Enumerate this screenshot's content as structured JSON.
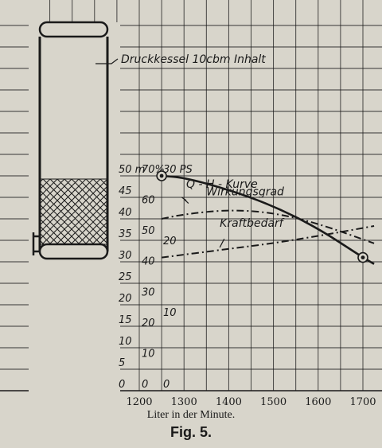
{
  "chart_data": {
    "type": "line",
    "x": {
      "label": "Liter in der Minute.",
      "ticks": [
        1200,
        1300,
        1400,
        1500,
        1600,
        1700
      ],
      "range": [
        1200,
        1700
      ]
    },
    "y_axes": [
      {
        "unit": "m",
        "ticks": [
          "0",
          "5",
          "10",
          "15",
          "20",
          "25",
          "30",
          "35",
          "40",
          "45",
          "50 m"
        ],
        "range": [
          0,
          50
        ]
      },
      {
        "unit": "%",
        "ticks": [
          "0",
          "10",
          "20",
          "30",
          "40",
          "50",
          "60",
          "70%"
        ],
        "range": [
          0,
          70
        ]
      },
      {
        "unit": "PS",
        "ticks": [
          "0",
          "10",
          "20",
          "30 PS"
        ],
        "range": [
          0,
          30
        ]
      }
    ],
    "series": [
      {
        "name": "Q-H-Kurve",
        "label": "Q - H - Kurve",
        "axis": "m",
        "style": "solid",
        "x": [
          1250,
          1300,
          1400,
          1500,
          1600,
          1700,
          1725
        ],
        "y": [
          50,
          49.6,
          46.8,
          43,
          37.8,
          31,
          29.5
        ],
        "markers": [
          [
            1250,
            50
          ],
          [
            1700,
            31
          ]
        ]
      },
      {
        "name": "Wirkungsgrad",
        "label": "Wirkungsgrad",
        "axis": "%",
        "style": "dashdot",
        "x": [
          1250,
          1300,
          1400,
          1500,
          1600,
          1725
        ],
        "y": [
          56,
          57.5,
          59,
          58,
          54.5,
          48
        ]
      },
      {
        "name": "Kraftbedarf",
        "label": "Kraftbedarf",
        "axis": "PS",
        "style": "dashdot",
        "x": [
          1250,
          1400,
          1500,
          1600,
          1725
        ],
        "y": [
          18.6,
          19.8,
          20.6,
          21.6,
          23
        ]
      }
    ],
    "grid": true,
    "tank": {
      "label": "Druckkessel 10cbm Inhalt"
    }
  },
  "captions": {
    "x_label": "Liter in der Minute.",
    "figure": "Fig. 5."
  },
  "colors": {
    "paper": "#d8d5cb",
    "ink": "#1a1a1a"
  }
}
